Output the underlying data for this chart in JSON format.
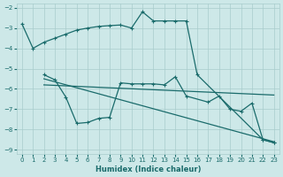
{
  "xlabel": "Humidex (Indice chaleur)",
  "background_color": "#cde8e8",
  "grid_color": "#a8cccc",
  "line_color": "#1a6b6b",
  "xlim": [
    -0.5,
    23.5
  ],
  "ylim": [
    -9.2,
    -1.8
  ],
  "yticks": [
    -9,
    -8,
    -7,
    -6,
    -5,
    -4,
    -3,
    -2
  ],
  "xticks": [
    0,
    1,
    2,
    3,
    4,
    5,
    6,
    7,
    8,
    9,
    10,
    11,
    12,
    13,
    14,
    15,
    16,
    17,
    18,
    19,
    20,
    21,
    22,
    23
  ],
  "line1_x": [
    0,
    1,
    2,
    3,
    4,
    5,
    6,
    7,
    8,
    9,
    10,
    11,
    12,
    13,
    14,
    15,
    16,
    22,
    23
  ],
  "line1_y": [
    -2.8,
    -4.0,
    -3.7,
    -3.5,
    -3.3,
    -3.1,
    -3.0,
    -2.92,
    -2.88,
    -2.85,
    -3.0,
    -2.2,
    -2.65,
    -2.65,
    -2.65,
    -2.65,
    -5.3,
    -8.5,
    -8.65
  ],
  "line2_x": [
    2,
    3,
    4,
    5,
    6,
    7,
    8,
    9,
    10,
    11,
    12,
    13,
    14,
    15,
    17,
    18,
    19,
    20,
    21,
    22,
    23
  ],
  "line2_y": [
    -5.3,
    -5.55,
    -6.4,
    -7.7,
    -7.65,
    -7.45,
    -7.4,
    -5.7,
    -5.75,
    -5.75,
    -5.75,
    -5.8,
    -5.4,
    -6.35,
    -6.65,
    -6.35,
    -7.0,
    -7.1,
    -6.7,
    -8.5,
    -8.65
  ],
  "line3_x": [
    2,
    23
  ],
  "line3_y": [
    -5.5,
    -8.6
  ],
  "line4_x": [
    2,
    23
  ],
  "line4_y": [
    -5.8,
    -6.3
  ]
}
